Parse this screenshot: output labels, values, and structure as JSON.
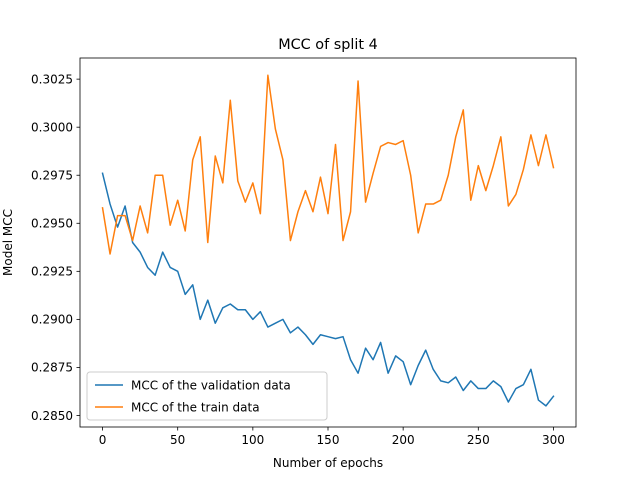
{
  "chart_data": {
    "type": "line",
    "title": "MCC of split 4",
    "xlabel": "Number of epochs",
    "ylabel": "Model MCC",
    "xlim": [
      -15,
      315
    ],
    "ylim": [
      0.2844,
      0.3036
    ],
    "xticks": [
      0,
      50,
      100,
      150,
      200,
      250,
      300
    ],
    "yticks": [
      0.285,
      0.2875,
      0.29,
      0.2925,
      0.295,
      0.2975,
      0.3,
      0.3025
    ],
    "ytick_labels": [
      "0.2850",
      "0.2875",
      "0.2900",
      "0.2925",
      "0.2950",
      "0.2975",
      "0.3000",
      "0.3025"
    ],
    "grid": false,
    "legend_position": "lower-left",
    "x": [
      0,
      5,
      10,
      15,
      20,
      25,
      30,
      35,
      40,
      45,
      50,
      55,
      60,
      65,
      70,
      75,
      80,
      85,
      90,
      95,
      100,
      105,
      110,
      115,
      120,
      125,
      130,
      135,
      140,
      145,
      150,
      155,
      160,
      165,
      170,
      175,
      180,
      185,
      190,
      195,
      200,
      205,
      210,
      215,
      220,
      225,
      230,
      235,
      240,
      245,
      250,
      255,
      260,
      265,
      270,
      275,
      280,
      285,
      290,
      295,
      300
    ],
    "series": [
      {
        "name": "MCC of the validation data",
        "color": "#1f77b4",
        "values": [
          0.2976,
          0.296,
          0.2948,
          0.2959,
          0.294,
          0.2935,
          0.2927,
          0.2923,
          0.2935,
          0.2927,
          0.2925,
          0.2913,
          0.2918,
          0.29,
          0.291,
          0.2898,
          0.2906,
          0.2908,
          0.2905,
          0.2905,
          0.29,
          0.2904,
          0.2896,
          0.2898,
          0.29,
          0.2893,
          0.2896,
          0.2892,
          0.2887,
          0.2892,
          0.2891,
          0.289,
          0.2891,
          0.2879,
          0.2872,
          0.2885,
          0.2879,
          0.2888,
          0.2872,
          0.2881,
          0.2878,
          0.2866,
          0.2876,
          0.2884,
          0.2874,
          0.2868,
          0.2867,
          0.287,
          0.2863,
          0.2868,
          0.2864,
          0.2864,
          0.2868,
          0.2865,
          0.2857,
          0.2864,
          0.2866,
          0.2874,
          0.2858,
          0.2855,
          0.286
        ]
      },
      {
        "name": "MCC of the train data",
        "color": "#ff7f0e",
        "values": [
          0.2958,
          0.2934,
          0.2954,
          0.2954,
          0.2941,
          0.2959,
          0.2945,
          0.2975,
          0.2975,
          0.2949,
          0.2962,
          0.2946,
          0.2983,
          0.2995,
          0.294,
          0.2985,
          0.2971,
          0.3014,
          0.2972,
          0.2961,
          0.2971,
          0.2955,
          0.3027,
          0.2999,
          0.2983,
          0.2941,
          0.2956,
          0.2967,
          0.2956,
          0.2974,
          0.2955,
          0.2991,
          0.2941,
          0.2956,
          0.3024,
          0.2961,
          0.2976,
          0.299,
          0.2992,
          0.2991,
          0.2993,
          0.2975,
          0.2945,
          0.296,
          0.296,
          0.2962,
          0.2975,
          0.2995,
          0.3009,
          0.2962,
          0.298,
          0.2967,
          0.298,
          0.2995,
          0.2959,
          0.2965,
          0.2978,
          0.2996,
          0.298,
          0.2996,
          0.2979
        ]
      }
    ]
  }
}
